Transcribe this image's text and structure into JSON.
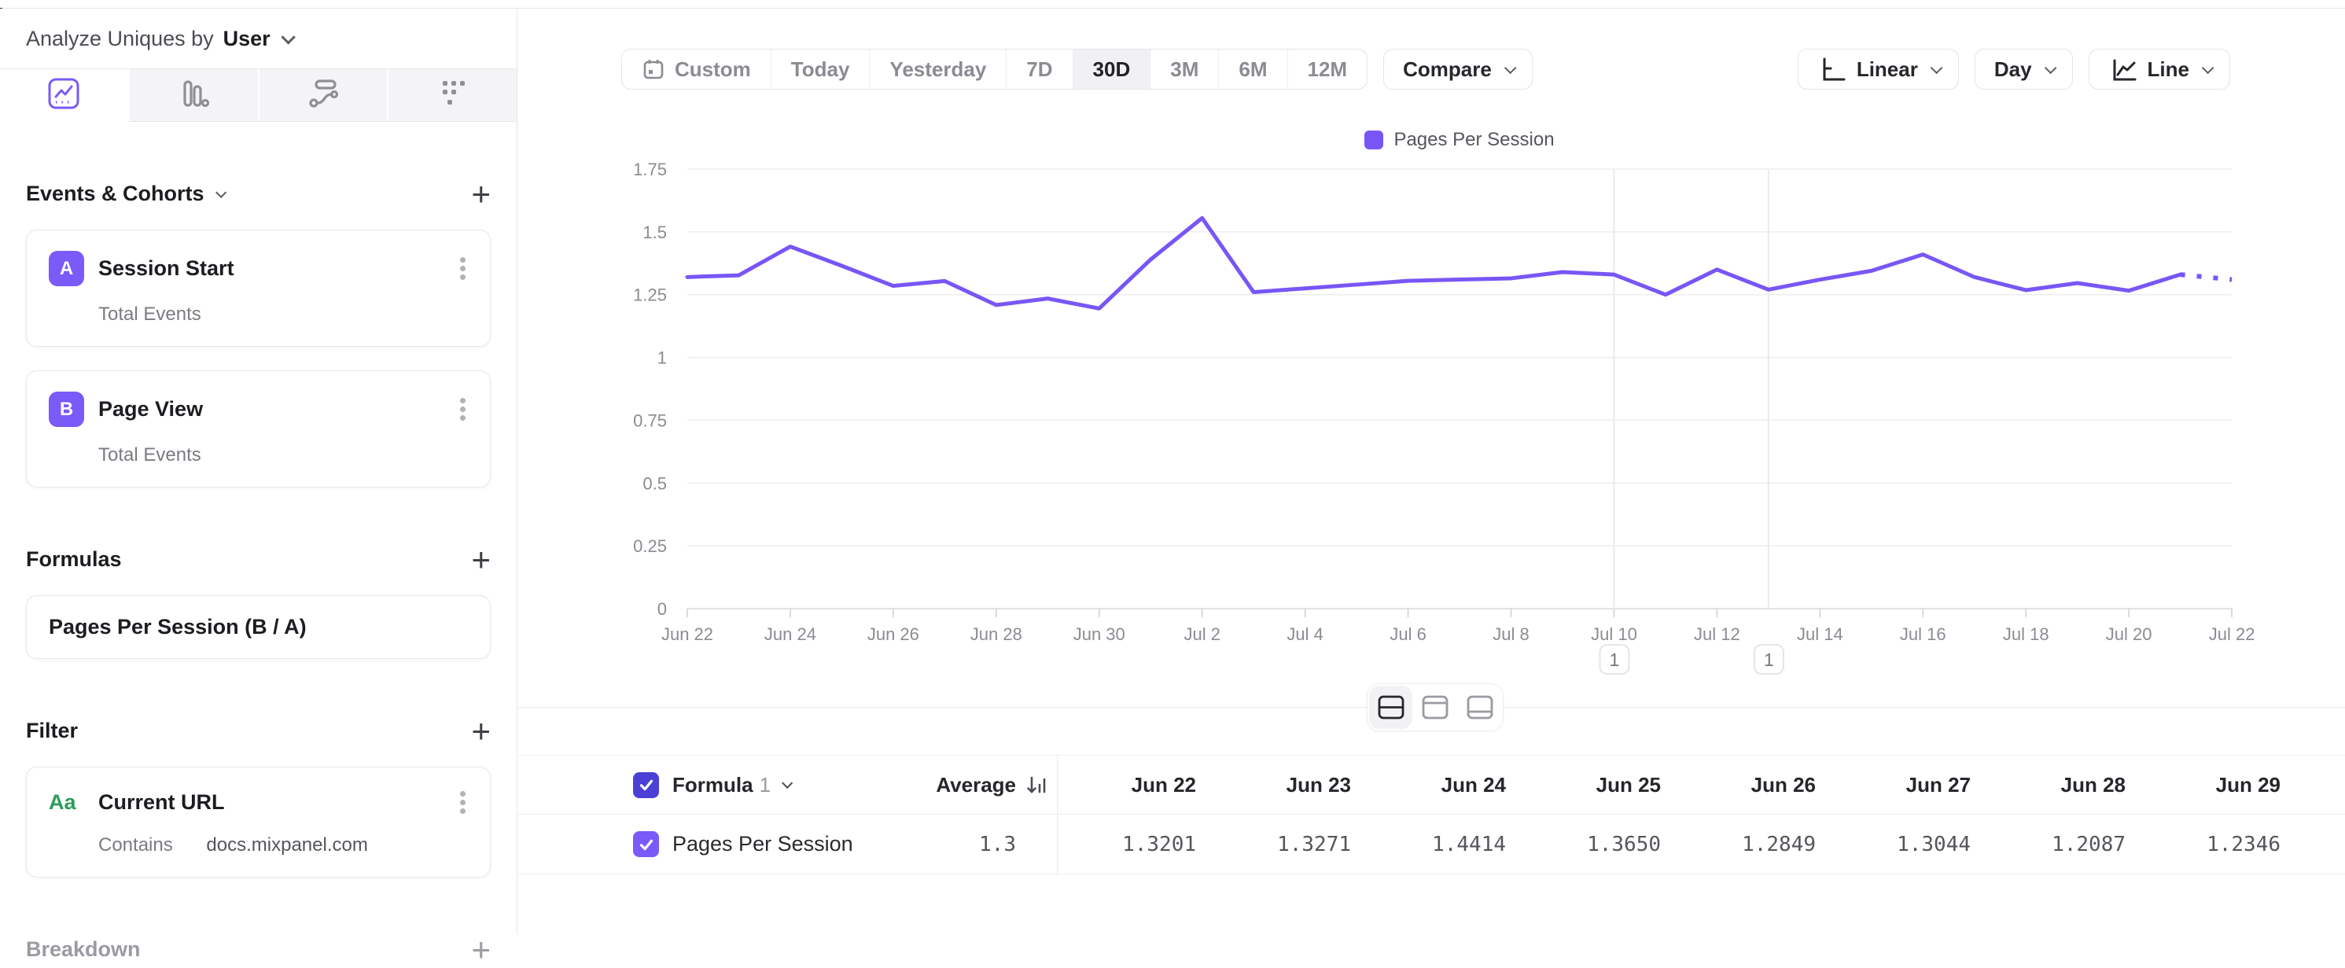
{
  "header": {
    "analyze_label": "Analyze Uniques by",
    "analyze_value": "User"
  },
  "sidebar": {
    "tabs": [
      {
        "name": "insights-line-tab",
        "active": true
      },
      {
        "name": "bar-chart-tab",
        "active": false
      },
      {
        "name": "flows-tab",
        "active": false
      },
      {
        "name": "retention-grid-tab",
        "active": false
      }
    ],
    "events": {
      "title": "Events & Cohorts",
      "add_label": "+",
      "items": [
        {
          "badge": "A",
          "title": "Session Start",
          "subtitle": "Total Events"
        },
        {
          "badge": "B",
          "title": "Page View",
          "subtitle": "Total Events"
        }
      ]
    },
    "formulas": {
      "title": "Formulas",
      "items": [
        {
          "title": "Pages Per Session (B / A)"
        }
      ]
    },
    "filter": {
      "title": "Filter",
      "items": [
        {
          "icon": "Aa",
          "title": "Current URL",
          "operator": "Contains",
          "value": "docs.mixpanel.com"
        }
      ]
    },
    "breakdown": {
      "title": "Breakdown"
    }
  },
  "toolbar": {
    "date_ranges": [
      "Custom",
      "Today",
      "Yesterday",
      "7D",
      "30D",
      "3M",
      "6M",
      "12M"
    ],
    "active_range": "30D",
    "compare_label": "Compare",
    "scale_label": "Linear",
    "interval_label": "Day",
    "chart_type_label": "Line"
  },
  "chart_data": {
    "type": "line",
    "title": "",
    "legend": [
      "Pages Per Session"
    ],
    "legend_position": "top-center",
    "line_color": "#7856f6",
    "grid": true,
    "ylim": [
      0,
      1.75
    ],
    "y_ticks": [
      "0",
      "0.25",
      "0.5",
      "0.75",
      "1",
      "1.25",
      "1.5",
      "1.75"
    ],
    "x_label_every": 2,
    "x": [
      "Jun 22",
      "Jun 23",
      "Jun 24",
      "Jun 25",
      "Jun 26",
      "Jun 27",
      "Jun 28",
      "Jun 29",
      "Jun 30",
      "Jul 1",
      "Jul 2",
      "Jul 3",
      "Jul 4",
      "Jul 5",
      "Jul 6",
      "Jul 7",
      "Jul 8",
      "Jul 9",
      "Jul 10",
      "Jul 11",
      "Jul 12",
      "Jul 13",
      "Jul 14",
      "Jul 15",
      "Jul 16",
      "Jul 17",
      "Jul 18",
      "Jul 19",
      "Jul 20",
      "Jul 21",
      "Jul 22"
    ],
    "series": [
      {
        "name": "Pages Per Session",
        "values": [
          1.3201,
          1.3271,
          1.4414,
          1.365,
          1.2849,
          1.3044,
          1.2087,
          1.2346,
          1.195,
          1.39,
          1.555,
          1.26,
          1.275,
          1.29,
          1.305,
          1.31,
          1.315,
          1.34,
          1.33,
          1.25,
          1.35,
          1.27,
          1.31,
          1.345,
          1.41,
          1.32,
          1.268,
          1.296,
          1.266,
          1.33,
          1.31
        ]
      }
    ],
    "dotted_from_index": 29,
    "annotations": [
      {
        "label": "1",
        "x_index": 18,
        "date": "Jul 10"
      },
      {
        "label": "1",
        "x_index": 21,
        "date": "Jul 13"
      }
    ]
  },
  "view_toggles": {
    "options": [
      "split-view",
      "chart-only",
      "table-only"
    ],
    "active": "split-view"
  },
  "table": {
    "formula_label": "Formula",
    "formula_index": "1",
    "average_label": "Average",
    "columns": [
      "Jun 22",
      "Jun 23",
      "Jun 24",
      "Jun 25",
      "Jun 26",
      "Jun 27",
      "Jun 28",
      "Jun 29"
    ],
    "rows": [
      {
        "name": "Pages Per Session",
        "average": "1.3",
        "values": [
          "1.3201",
          "1.3271",
          "1.4414",
          "1.3650",
          "1.2849",
          "1.3044",
          "1.2087",
          "1.2346"
        ]
      }
    ]
  },
  "colors": {
    "accent_purple": "#7856f6",
    "badge_purple": "#7a5af8",
    "checkbox_dark": "#4b3fd6",
    "checkbox_light": "#7a5af8",
    "filter_green": "#2a9d5c"
  }
}
